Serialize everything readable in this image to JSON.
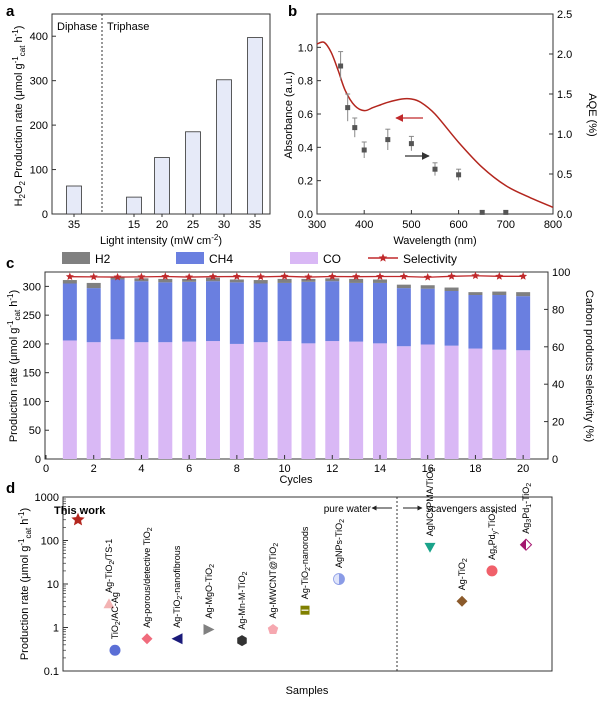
{
  "panels": [
    {
      "letter": "a",
      "chart_data": {
        "type": "bar",
        "ylabel": "H2O2 Production rate (μmol g⁻¹cat h⁻¹)",
        "xlabel": "Light intensity (mW cm⁻²)",
        "region_labels": [
          "Diphase",
          "Triphase"
        ],
        "categories": [
          "35",
          "15",
          "20",
          "25",
          "30",
          "35"
        ],
        "values": [
          63,
          38,
          127,
          185,
          302,
          397
        ],
        "ylim": [
          0,
          450
        ],
        "yticks": [
          0,
          100,
          200,
          300,
          400
        ],
        "bar_color": "#e6eaf8"
      }
    },
    {
      "letter": "b",
      "chart_data": {
        "type": "line",
        "xlabel": "Wavelength (nm)",
        "ylabel_left": "Absorbance (a.u.)",
        "ylabel_right": "AQE (%)",
        "xlim": [
          300,
          800
        ],
        "xticks": [
          300,
          400,
          500,
          600,
          700,
          800
        ],
        "ylim_left": [
          0.0,
          1.2
        ],
        "yticks_left": [
          0.0,
          0.2,
          0.4,
          0.6,
          0.8,
          1.0
        ],
        "ylim_right": [
          0.0,
          2.5
        ],
        "yticks_right": [
          0.0,
          0.5,
          1.0,
          1.5,
          2.0,
          2.5
        ],
        "absorbance_curve": {
          "x": [
            300,
            315,
            330,
            345,
            360,
            380,
            400,
            420,
            450,
            480,
            500,
            520,
            550,
            600,
            650,
            700,
            750,
            800
          ],
          "y": [
            1.02,
            1.03,
            0.97,
            0.86,
            0.74,
            0.65,
            0.62,
            0.64,
            0.67,
            0.69,
            0.69,
            0.67,
            0.6,
            0.43,
            0.28,
            0.17,
            0.1,
            0.04
          ]
        },
        "aqe_points": {
          "x": [
            350,
            365,
            380,
            400,
            450,
            500,
            550,
            600,
            650,
            700
          ],
          "y": [
            1.85,
            1.33,
            1.08,
            0.8,
            0.93,
            0.88,
            0.56,
            0.49,
            0.02,
            0.02
          ],
          "err": [
            0.18,
            0.17,
            0.12,
            0.1,
            0.13,
            0.09,
            0.08,
            0.07,
            0.02,
            0.02
          ]
        },
        "colors": {
          "curve": "#b3261e",
          "points": "#555555"
        }
      }
    },
    {
      "letter": "c",
      "chart_data": {
        "type": "bar",
        "stacked": true,
        "xlabel": "Cycles",
        "ylabel_left": "Production rate (μmol g⁻¹cat h⁻¹)",
        "ylabel_right": "Carbon products selectivity (%)",
        "legend": [
          "H2",
          "CH4",
          "CO",
          "Selectivity"
        ],
        "x": [
          1,
          2,
          3,
          4,
          5,
          6,
          7,
          8,
          9,
          10,
          11,
          12,
          13,
          14,
          15,
          16,
          17,
          18,
          19,
          20
        ],
        "series": [
          {
            "name": "CO",
            "values": [
              206,
              203,
              208,
              203,
              203,
              204,
              205,
              200,
              203,
              205,
              201,
              205,
              204,
              201,
              196,
              199,
              197,
              192,
              190,
              189
            ]
          },
          {
            "name": "CH4",
            "values": [
              99,
              94,
              104,
              106,
              104,
              104,
              104,
              107,
              102,
              101,
              107,
              104,
              102,
              105,
              101,
              97,
              95,
              93,
              95,
              94
            ]
          },
          {
            "name": "H2",
            "values": [
              6,
              9,
              4,
              5,
              6,
              5,
              6,
              5,
              6,
              7,
              5,
              5,
              7,
              6,
              6,
              6,
              6,
              5,
              6,
              7
            ]
          },
          {
            "name": "Selectivity",
            "values": [
              97.5,
              97.4,
              97.3,
              97.4,
              97.6,
              97.3,
              97.5,
              97.6,
              97.4,
              97.7,
              97.3,
              97.6,
              97.5,
              97.6,
              97.6,
              97.2,
              97.7,
              98.0,
              97.7,
              97.7
            ]
          }
        ],
        "ylim_left": [
          0,
          325
        ],
        "yticks_left": [
          0,
          50,
          100,
          150,
          200,
          250,
          300
        ],
        "ylim_right": [
          0,
          100
        ],
        "yticks_right": [
          0,
          20,
          40,
          60,
          80,
          100
        ],
        "xticks": [
          0,
          2,
          4,
          6,
          8,
          10,
          12,
          14,
          16,
          18,
          20
        ],
        "colors": {
          "H2": "#808080",
          "CH4": "#6a7fe0",
          "CO": "#d9b8f5",
          "Selectivity": "#c0292b"
        }
      }
    },
    {
      "letter": "d",
      "chart_data": {
        "type": "scatter",
        "ylabel": "Production rate (μmol g⁻¹cat h⁻¹)",
        "xlabel": "Samples",
        "yscale": "log",
        "ylim": [
          0.1,
          1000
        ],
        "yticks": [
          "0.1",
          "1",
          "10",
          "100",
          "1000"
        ],
        "region_labels": [
          "pure water",
          "scavengers assisted"
        ],
        "points": [
          {
            "label": "This work",
            "value": 300,
            "marker": "star",
            "color": "#b3261e"
          },
          {
            "label": "Ag-TiO2/TS-1",
            "value": 3.5,
            "marker": "triangle",
            "color": "#f3b3b3"
          },
          {
            "label": "TiO2/AC-Ag",
            "value": 0.3,
            "marker": "circle",
            "color": "#5b6fd6"
          },
          {
            "label": "Ag-porous/defective TiO2",
            "value": 0.55,
            "marker": "diamond",
            "color": "#f06b7c"
          },
          {
            "label": "Ag-TiO2-nanofibrous",
            "value": 0.55,
            "marker": "triangle-left",
            "color": "#1a1a7a"
          },
          {
            "label": "Ag-MgO-TiO2",
            "value": 0.9,
            "marker": "triangle-right",
            "color": "#808080"
          },
          {
            "label": "Ag-Mn-M-TiO2",
            "value": 0.5,
            "marker": "hexagon",
            "color": "#333333"
          },
          {
            "label": "Ag-MWCNT@TiO2",
            "value": 0.9,
            "marker": "pentagon",
            "color": "#f6a8b0"
          },
          {
            "label": "Ag-TiO2-nanorods",
            "value": 2.5,
            "marker": "square",
            "color": "#808000"
          },
          {
            "label": "AgNPs-TiO2",
            "value": 13,
            "marker": "half-circle",
            "color": "#8a9be6"
          },
          {
            "label": "AgNCsPMA/TiO2",
            "value": 70,
            "marker": "triangle-down",
            "color": "#1aa38a"
          },
          {
            "label": "Ag-TiO2",
            "value": 4,
            "marker": "diamond",
            "color": "#8b5a2b"
          },
          {
            "label": "AgxPdy-TiO2",
            "value": 20,
            "marker": "circle",
            "color": "#f0606a"
          },
          {
            "label": "Ag3Pd1-TiO2",
            "value": 80,
            "marker": "half-diamond",
            "color": "#a4156f"
          }
        ]
      }
    }
  ]
}
